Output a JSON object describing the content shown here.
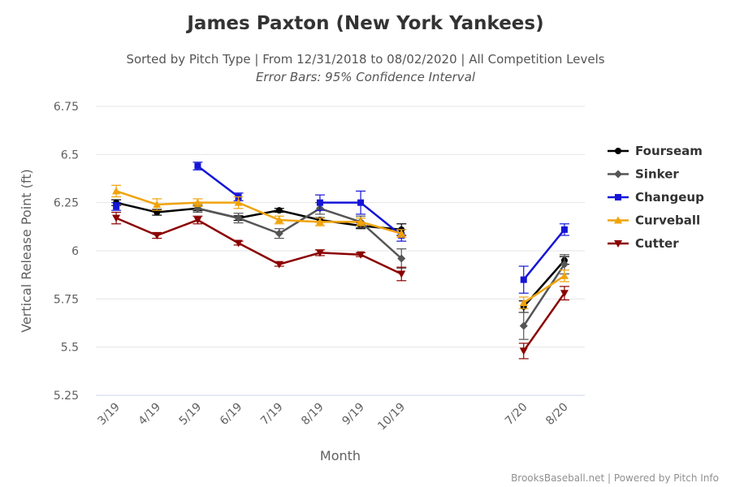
{
  "chart_data": {
    "type": "line",
    "title": "James Paxton (New York Yankees)",
    "subtitle": "Sorted by Pitch Type | From 12/31/2018 to 08/02/2020 | All Competition Levels",
    "subtitle2": "Error Bars: 95% Confidence Interval",
    "xlabel": "Month",
    "ylabel": "Vertical Release Point (ft)",
    "credit": "BrooksBaseball.net | Powered by Pitch Info",
    "categories": [
      "3/19",
      "4/19",
      "5/19",
      "6/19",
      "7/19",
      "8/19",
      "9/19",
      "10/19",
      "",
      "",
      "7/20",
      "8/20"
    ],
    "ylim": [
      5.25,
      6.75
    ],
    "yticks": [
      5.25,
      5.5,
      5.75,
      6,
      6.25,
      6.5,
      6.75
    ],
    "ytick_labels": [
      "5.25",
      "5.5",
      "5.75",
      "6",
      "6.25",
      "6.5",
      "6.75"
    ],
    "grid": true,
    "legend_position": "right",
    "series": [
      {
        "name": "Fourseam",
        "color": "#000000",
        "marker": "circle",
        "values": [
          6.25,
          6.2,
          6.22,
          6.17,
          6.21,
          6.16,
          6.13,
          6.11,
          null,
          null,
          5.71,
          5.95
        ],
        "errors": [
          0.015,
          0.015,
          0.012,
          0.012,
          0.01,
          0.012,
          0.015,
          0.03,
          null,
          null,
          0.03,
          0.02
        ]
      },
      {
        "name": "Sinker",
        "color": "#555555",
        "marker": "diamond",
        "values": [
          null,
          null,
          6.22,
          6.17,
          6.09,
          6.22,
          6.15,
          5.96,
          null,
          null,
          5.61,
          5.93
        ],
        "errors": [
          null,
          null,
          0.02,
          0.025,
          0.025,
          0.03,
          0.03,
          0.05,
          null,
          null,
          0.07,
          0.05
        ]
      },
      {
        "name": "Changeup",
        "color": "#1515d8",
        "marker": "square",
        "values": [
          6.23,
          null,
          6.44,
          6.28,
          null,
          6.25,
          6.25,
          6.08,
          null,
          null,
          5.85,
          6.11
        ],
        "errors": [
          0.02,
          null,
          0.02,
          0.02,
          null,
          0.04,
          0.06,
          0.03,
          null,
          null,
          0.07,
          0.03
        ]
      },
      {
        "name": "Curveball",
        "color": "#f0a30a",
        "marker": "triangle",
        "values": [
          6.31,
          6.24,
          6.25,
          6.25,
          6.16,
          6.15,
          6.15,
          6.09,
          null,
          null,
          5.73,
          5.87
        ],
        "errors": [
          0.03,
          0.03,
          0.02,
          0.03,
          0.02,
          0.02,
          0.02,
          0.02,
          null,
          null,
          0.03,
          0.03
        ]
      },
      {
        "name": "Cutter",
        "color": "#8b0000",
        "marker": "triangle-down",
        "values": [
          6.17,
          6.08,
          6.16,
          6.04,
          5.93,
          5.99,
          5.98,
          5.88,
          null,
          null,
          5.48,
          5.78
        ],
        "errors": [
          0.03,
          0.015,
          0.02,
          0.01,
          0.01,
          0.015,
          0.01,
          0.035,
          null,
          null,
          0.04,
          0.035
        ]
      }
    ]
  }
}
